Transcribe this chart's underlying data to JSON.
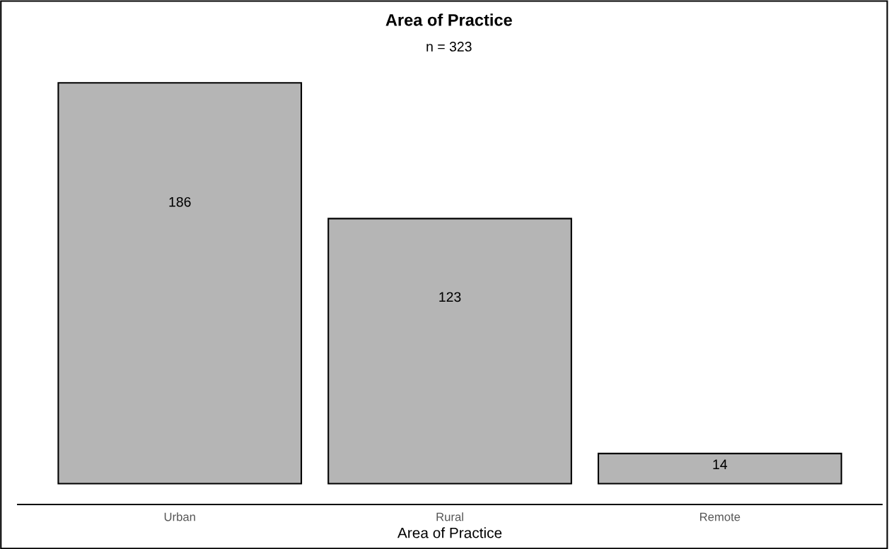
{
  "chart_data": {
    "type": "bar",
    "title": "Area of Practice",
    "subtitle": "n = 323",
    "xlabel": "Area of Practice",
    "categories": [
      "Urban",
      "Rural",
      "Remote"
    ],
    "values": [
      186,
      123,
      14
    ],
    "color": "#b5b5b5",
    "data_labels": true,
    "grid": false,
    "legend": false
  }
}
